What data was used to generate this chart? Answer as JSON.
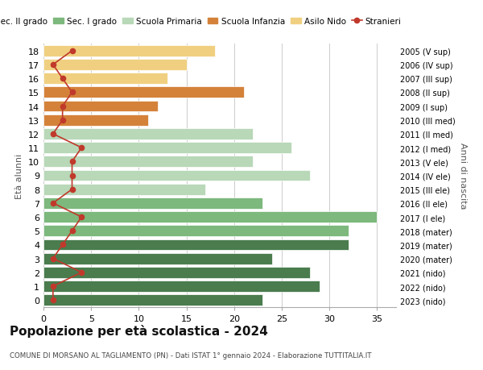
{
  "ages": [
    18,
    17,
    16,
    15,
    14,
    13,
    12,
    11,
    10,
    9,
    8,
    7,
    6,
    5,
    4,
    3,
    2,
    1,
    0
  ],
  "years": [
    "2005 (V sup)",
    "2006 (IV sup)",
    "2007 (III sup)",
    "2008 (II sup)",
    "2009 (I sup)",
    "2010 (III med)",
    "2011 (II med)",
    "2012 (I med)",
    "2013 (V ele)",
    "2014 (IV ele)",
    "2015 (III ele)",
    "2016 (II ele)",
    "2017 (I ele)",
    "2018 (mater)",
    "2019 (mater)",
    "2020 (mater)",
    "2021 (nido)",
    "2022 (nido)",
    "2023 (nido)"
  ],
  "values": [
    23,
    29,
    28,
    24,
    32,
    32,
    35,
    23,
    17,
    28,
    22,
    26,
    22,
    11,
    12,
    21,
    13,
    15,
    18
  ],
  "stranieri": [
    1,
    1,
    4,
    1,
    2,
    3,
    4,
    1,
    3,
    3,
    3,
    4,
    1,
    2,
    2,
    3,
    2,
    1,
    3
  ],
  "bar_colors": [
    "#4a7c4e",
    "#4a7c4e",
    "#4a7c4e",
    "#4a7c4e",
    "#4a7c4e",
    "#7db87d",
    "#7db87d",
    "#7db87d",
    "#b8d8b8",
    "#b8d8b8",
    "#b8d8b8",
    "#b8d8b8",
    "#b8d8b8",
    "#d4823a",
    "#d4823a",
    "#d4823a",
    "#f0d080",
    "#f0d080",
    "#f0d080"
  ],
  "legend_labels": [
    "Sec. II grado",
    "Sec. I grado",
    "Scuola Primaria",
    "Scuola Infanzia",
    "Asilo Nido",
    "Stranieri"
  ],
  "legend_colors": [
    "#4a7c4e",
    "#7db87d",
    "#b8d8b8",
    "#d4823a",
    "#f0d080",
    "#c0392b"
  ],
  "stranieri_color": "#c0392b",
  "title": "Popolazione per età scolastica - 2024",
  "subtitle": "COMUNE DI MORSANO AL TAGLIAMENTO (PN) - Dati ISTAT 1° gennaio 2024 - Elaborazione TUTTITALIA.IT",
  "ylabel": "Età alunni",
  "y2label": "Anni di nascita",
  "xlabel_vals": [
    0,
    5,
    10,
    15,
    20,
    25,
    30,
    35
  ],
  "xlim": [
    0,
    37
  ],
  "background_color": "#ffffff",
  "grid_color": "#cccccc"
}
